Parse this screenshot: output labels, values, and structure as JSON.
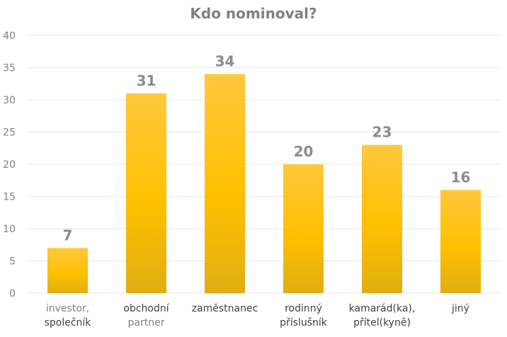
{
  "chart_data": {
    "type": "bar",
    "title": "Kdo nominoval?",
    "categories": [
      [
        "investor,",
        "společník"
      ],
      [
        "obchodní",
        "partner"
      ],
      [
        "zaměstnanec"
      ],
      [
        "rodinný",
        "příslušník"
      ],
      [
        "kamarád(ka),",
        "přítel(kyně)"
      ],
      [
        "jiný"
      ]
    ],
    "category_line_colors": [
      [
        "#808080",
        "#404040"
      ],
      [
        "#404040",
        "#808080"
      ],
      [
        "#404040"
      ],
      [
        "#404040",
        "#404040"
      ],
      [
        "#404040",
        "#404040"
      ],
      [
        "#404040"
      ]
    ],
    "values": [
      7,
      31,
      34,
      20,
      23,
      16
    ],
    "ylim": [
      0,
      40
    ],
    "yticks": [
      0,
      5,
      10,
      15,
      20,
      25,
      30,
      35,
      40
    ],
    "xlabel": "",
    "ylabel": "",
    "grid": true,
    "legend": "none",
    "colors": {
      "bar_top": "#FFC83D",
      "bar_mid": "#FFC000",
      "bar_bottom": "#E0AE12"
    }
  }
}
